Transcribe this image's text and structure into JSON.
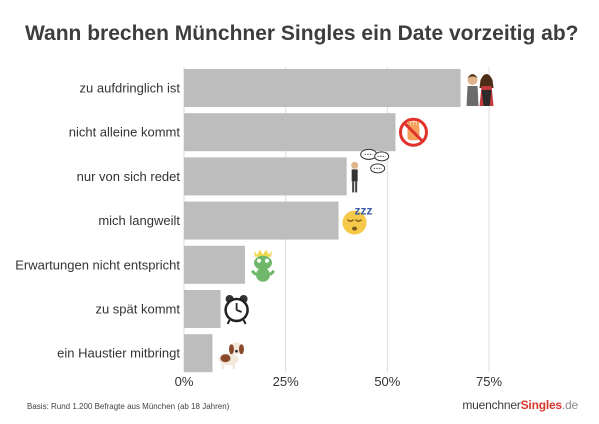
{
  "chart_data": {
    "type": "bar",
    "orientation": "horizontal",
    "title": "Wann brechen Münchner Singles ein Date vorzeitig ab?",
    "categories": [
      "zu aufdringlich ist",
      "nicht alleine kommt",
      "nur von sich redet",
      "mich langweilt",
      "Erwartungen nicht entspricht",
      "zu spät kommt",
      "ein Haustier mitbringt"
    ],
    "values": [
      68,
      52,
      40,
      38,
      15,
      9,
      7
    ],
    "icons": [
      "couple-icon",
      "stop-hand-icon",
      "talking-man-icon",
      "sleeping-face-icon",
      "frog-prince-icon",
      "alarm-clock-icon",
      "dog-icon"
    ],
    "xlim": [
      0,
      75
    ],
    "xticks": [
      0,
      25,
      50,
      75
    ],
    "xtick_labels": [
      "0%",
      "25%",
      "50%",
      "75%"
    ],
    "grid": true,
    "bar_color": "#bdbdbd",
    "grid_color": "#dddddd"
  },
  "footnote": "Basis: Rund 1.200 Befragte aus München (ab 18 Jahren)",
  "logo": {
    "prefix": "muenchner",
    "brand": "Singles",
    "suffix": ".de"
  }
}
